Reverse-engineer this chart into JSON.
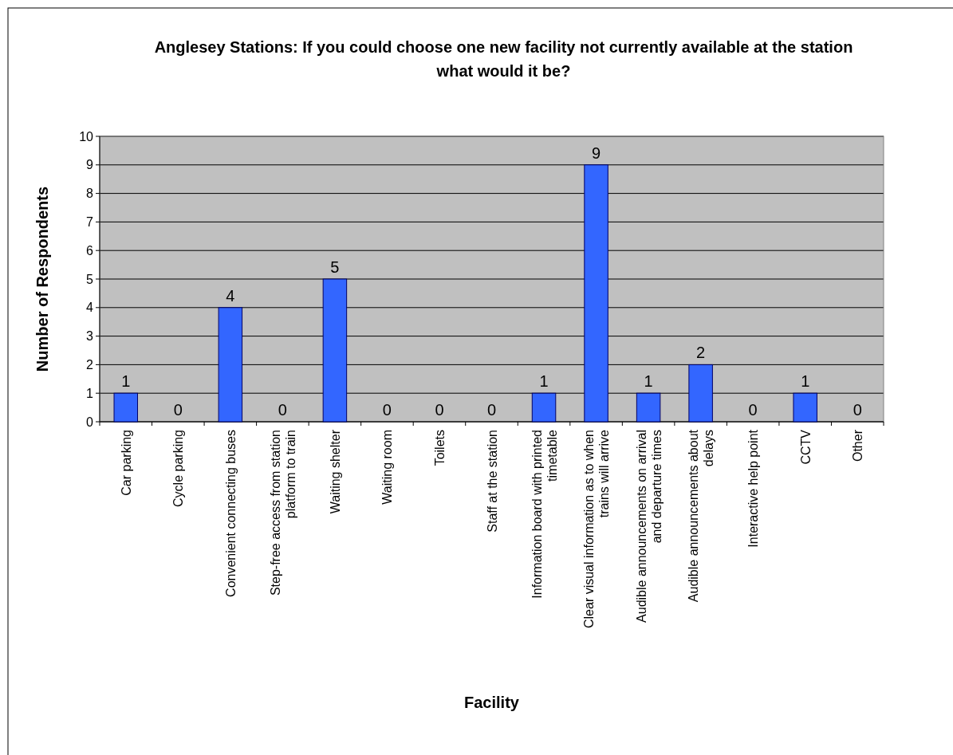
{
  "chart_data": {
    "type": "bar",
    "title": "Anglesey Stations: If you could choose one new facility not currently available at the station what would it be?",
    "xlabel": "Facility",
    "ylabel": "Number of Respondents",
    "categories": [
      "Car parking",
      "Cycle parking",
      "Convenient connecting buses",
      "Step-free access from station platform to train",
      "Waiting shelter",
      "Waiting room",
      "Toilets",
      "Staff at the station",
      "Information board with printed timetable",
      "Clear visual information as to when trains will arrive",
      "Audible announcements on arrival and departure times",
      "Audible announcements about delays",
      "Interactive help point",
      "CCTV",
      "Other"
    ],
    "values": [
      1,
      0,
      4,
      0,
      5,
      0,
      0,
      0,
      1,
      9,
      1,
      2,
      0,
      1,
      0
    ],
    "color": "#3366ff",
    "ylim": [
      0,
      10
    ],
    "yticks": [
      0,
      1,
      2,
      3,
      4,
      5,
      6,
      7,
      8,
      9,
      10
    ],
    "grid": "y",
    "data_labels": true
  }
}
